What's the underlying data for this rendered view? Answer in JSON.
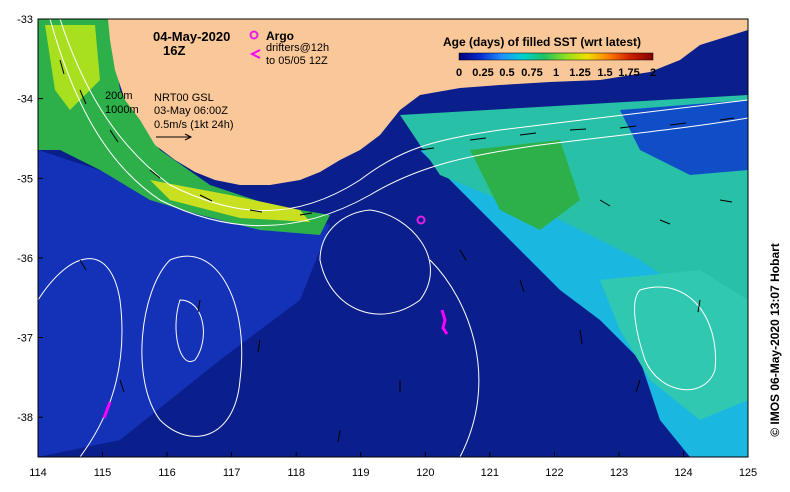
{
  "title": {
    "date": "04-May-2020",
    "hour": "16Z"
  },
  "legend": {
    "argo": "Argo",
    "drifters_line1": "drifters@12h",
    "drifters_line2": "to 05/05 12Z",
    "contour_200": "200m",
    "contour_1000": "1000m",
    "model_line1": "NRT00 GSL",
    "model_line2": "03-May 06:00Z",
    "scale_line": "0.5m/s (1kt 24h)"
  },
  "colorbar": {
    "title": "Age (days) of filled SST (wrt latest)",
    "ticks": [
      "0",
      "0.25",
      "0.5",
      "0.75",
      "1",
      "1.25",
      "1.5",
      "1.75",
      "2"
    ],
    "colors": [
      "#00007a",
      "#0a2ad0",
      "#1e90ff",
      "#00d2d2",
      "#20c060",
      "#90e020",
      "#f0e000",
      "#ff8000",
      "#d02000",
      "#800000"
    ]
  },
  "credit": "© IMOS 06-May-2020 13:07 Hobart",
  "axes": {
    "x_ticks": [
      "114",
      "115",
      "116",
      "117",
      "118",
      "119",
      "120",
      "121",
      "122",
      "123",
      "124",
      "125"
    ],
    "y_ticks": [
      "-33",
      "-34",
      "-35",
      "-36",
      "-37",
      "-38"
    ],
    "lon_range": [
      114,
      125
    ],
    "lat_range": [
      -38.5,
      -33
    ]
  },
  "colors": {
    "land": "#fac898",
    "deep_ocean": "#0b1f8c",
    "ocean_mid": "#1537c4",
    "shelf_teal": "#28c0a6",
    "shelf_green": "#2db04a",
    "shelf_cyan": "#1ab8e0",
    "argo": "#e81ce8",
    "drifter": "#ff00ff"
  },
  "argo_floats": [
    {
      "lon": 119.95,
      "lat": -35.5
    }
  ],
  "drifters": [
    {
      "lon": 120.3,
      "lat": -36.9
    },
    {
      "lon": 115.05,
      "lat": -37.95
    }
  ]
}
